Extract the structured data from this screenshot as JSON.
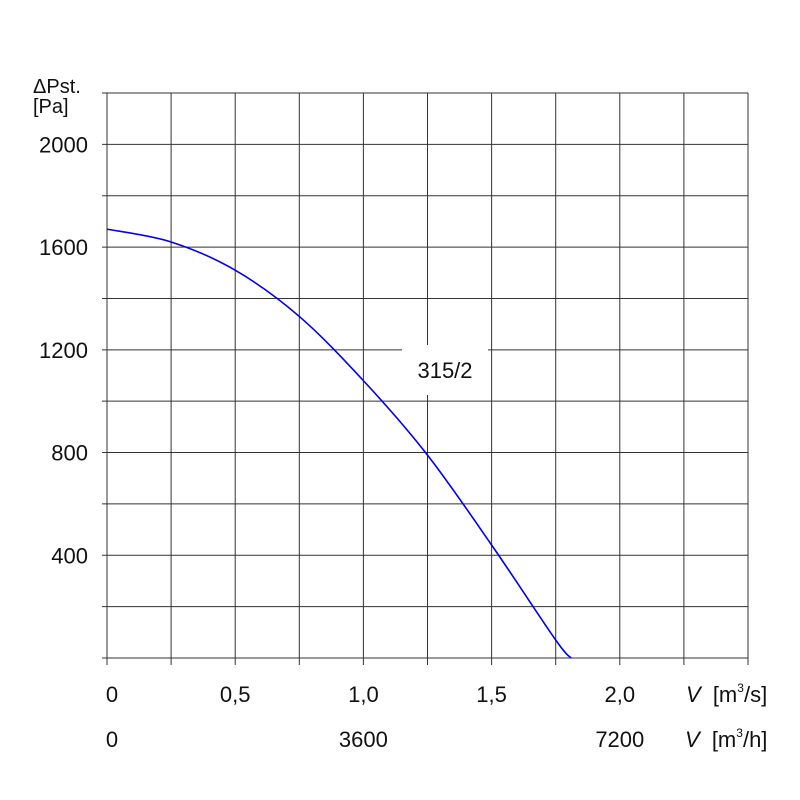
{
  "chart_data": {
    "type": "line",
    "y_axis": {
      "label_symbol": "ΔPst.",
      "label_unit": "[Pa]",
      "range": [
        0,
        2200
      ],
      "ticks": [
        400,
        800,
        1200,
        1600,
        2000
      ],
      "tick_labels": [
        "400",
        "800",
        "1200",
        "1600",
        "2000"
      ],
      "grid_step": 200
    },
    "x_axis": {
      "range": [
        0,
        2.5
      ],
      "grid_step": 0.25,
      "label_symbol": "V",
      "primary_unit": "[m3/s]",
      "primary_unit_base": "[m",
      "primary_unit_sup": "3",
      "primary_unit_tail": "/s]",
      "primary_ticks": [
        0,
        0.5,
        1.0,
        1.5,
        2.0
      ],
      "primary_tick_labels": [
        "0",
        "0,5",
        "1,0",
        "1,5",
        "2,0"
      ],
      "secondary_unit": "[m3/h]",
      "secondary_unit_base": "[m",
      "secondary_unit_sup": "3",
      "secondary_unit_tail": "/h]",
      "secondary_ticks_m3s": [
        0,
        1.0,
        2.0
      ],
      "secondary_tick_labels": [
        "0",
        "3600",
        "7200"
      ]
    },
    "grid": true,
    "series": [
      {
        "name": "315/2",
        "color": "#0000ee",
        "x": [
          0,
          0.25,
          0.5,
          0.75,
          1.0,
          1.25,
          1.5,
          1.75,
          1.81
        ],
        "y": [
          1670,
          1620,
          1510,
          1330,
          1080,
          790,
          440,
          70,
          0
        ]
      }
    ]
  }
}
